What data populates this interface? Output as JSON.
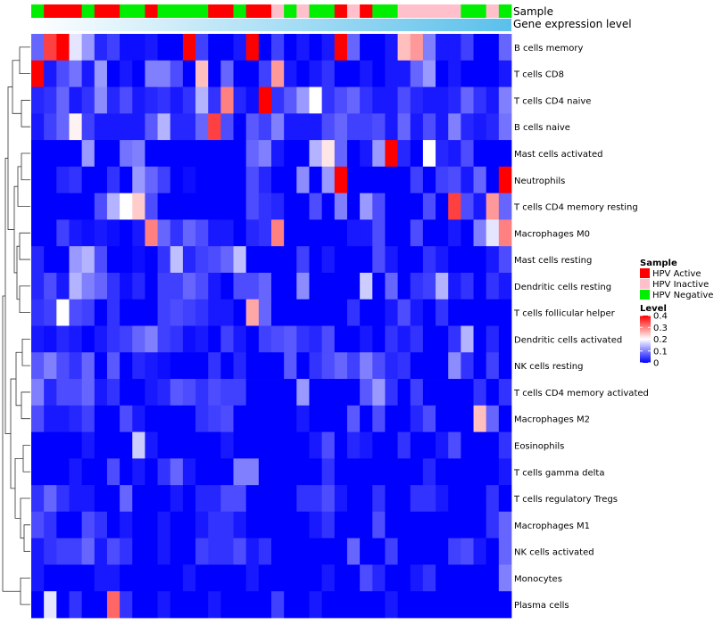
{
  "chart_data": {
    "type": "heatmap",
    "annotation_labels": [
      "Sample",
      "Gene expression level"
    ],
    "sample_groups": [
      "HPV Negative",
      "HPV Active",
      "HPV Active",
      "HPV Active",
      "HPV Negative",
      "HPV Active",
      "HPV Active",
      "HPV Negative",
      "HPV Negative",
      "HPV Active",
      "HPV Negative",
      "HPV Negative",
      "HPV Negative",
      "HPV Negative",
      "HPV Active",
      "HPV Active",
      "HPV Negative",
      "HPV Active",
      "HPV Active",
      "HPV Inactive",
      "HPV Negative",
      "HPV Inactive",
      "HPV Negative",
      "HPV Negative",
      "HPV Active",
      "HPV Inactive",
      "HPV Active",
      "HPV Negative",
      "HPV Negative",
      "HPV Inactive",
      "HPV Inactive",
      "HPV Inactive",
      "HPV Inactive",
      "HPV Inactive",
      "HPV Negative",
      "HPV Negative",
      "HPV Inactive",
      "HPV Negative"
    ],
    "expression_gradient": [
      "#ffffff",
      "#5bc0eb"
    ],
    "rows": [
      "B cells memory",
      "T cells CD8",
      "T cells CD4 naive",
      "B cells naive",
      "Mast cells activated",
      "Neutrophils",
      "T cells CD4 memory resting",
      "Macrophages M0",
      "Mast cells resting",
      "Dendritic cells resting",
      "T cells follicular helper",
      "Dendritic cells activated",
      "NK cells resting",
      "T cells CD4 memory activated",
      "Macrophages M2",
      "Eosinophils",
      "T cells gamma delta",
      "T cells regulatory  Tregs",
      "Macrophages M1",
      "NK cells activated",
      "Monocytes",
      "Plasma cells"
    ],
    "values": [
      [
        0.08,
        0.35,
        0.4,
        0.18,
        0.12,
        0.03,
        0.05,
        0.01,
        0.01,
        0.02,
        0.0,
        0.0,
        0.4,
        0.05,
        0.0,
        0.0,
        0.02,
        0.4,
        0.0,
        0.05,
        0.0,
        0.02,
        0.0,
        0.02,
        0.4,
        0.08,
        0.0,
        0.0,
        0.02,
        0.25,
        0.28,
        0.1,
        0.02,
        0.02,
        0.05,
        0.0,
        0.0,
        0.08
      ],
      [
        0.4,
        0.02,
        0.06,
        0.09,
        0.02,
        0.12,
        0.0,
        0.02,
        0.0,
        0.1,
        0.1,
        0.06,
        0.0,
        0.25,
        0.0,
        0.08,
        0.0,
        0.0,
        0.05,
        0.28,
        0.02,
        0.0,
        0.02,
        0.04,
        0.0,
        0.0,
        0.02,
        0.0,
        0.02,
        0.02,
        0.08,
        0.12,
        0.0,
        0.02,
        0.0,
        0.0,
        0.0,
        0.02
      ],
      [
        0.03,
        0.04,
        0.08,
        0.02,
        0.04,
        0.11,
        0.03,
        0.06,
        0.02,
        0.03,
        0.04,
        0.02,
        0.04,
        0.14,
        0.04,
        0.3,
        0.03,
        0.01,
        0.4,
        0.04,
        0.07,
        0.12,
        0.2,
        0.04,
        0.06,
        0.08,
        0.04,
        0.02,
        0.02,
        0.06,
        0.03,
        0.02,
        0.02,
        0.03,
        0.08,
        0.04,
        0.02,
        0.1
      ],
      [
        0.02,
        0.05,
        0.08,
        0.21,
        0.05,
        0.02,
        0.02,
        0.02,
        0.02,
        0.07,
        0.14,
        0.03,
        0.03,
        0.08,
        0.35,
        0.06,
        0.0,
        0.07,
        0.05,
        0.1,
        0.02,
        0.02,
        0.02,
        0.06,
        0.08,
        0.05,
        0.05,
        0.06,
        0.02,
        0.08,
        0.02,
        0.06,
        0.02,
        0.1,
        0.03,
        0.02,
        0.03,
        0.09
      ],
      [
        0.0,
        0.0,
        0.0,
        0.0,
        0.12,
        0.0,
        0.0,
        0.09,
        0.1,
        0.0,
        0.0,
        0.0,
        0.0,
        0.0,
        0.0,
        0.0,
        0.0,
        0.08,
        0.1,
        0.02,
        0.0,
        0.0,
        0.14,
        0.22,
        0.08,
        0.0,
        0.02,
        0.12,
        0.4,
        0.03,
        0.0,
        0.2,
        0.03,
        0.02,
        0.06,
        0.0,
        0.0,
        0.0
      ],
      [
        0.0,
        0.0,
        0.03,
        0.04,
        0.0,
        0.0,
        0.04,
        0.0,
        0.12,
        0.08,
        0.05,
        0.0,
        0.01,
        0.0,
        0.0,
        0.0,
        0.0,
        0.06,
        0.03,
        0.0,
        0.0,
        0.11,
        0.0,
        0.12,
        0.4,
        0.0,
        0.0,
        0.0,
        0.0,
        0.0,
        0.05,
        0.0,
        0.05,
        0.06,
        0.02,
        0.08,
        0.0,
        0.4
      ],
      [
        0.0,
        0.0,
        0.0,
        0.0,
        0.0,
        0.06,
        0.14,
        0.2,
        0.24,
        0.06,
        0.0,
        0.0,
        0.0,
        0.0,
        0.0,
        0.0,
        0.0,
        0.06,
        0.04,
        0.03,
        0.0,
        0.0,
        0.06,
        0.0,
        0.1,
        0.0,
        0.12,
        0.06,
        0.0,
        0.0,
        0.0,
        0.06,
        0.0,
        0.35,
        0.06,
        0.02,
        0.28,
        0.08
      ],
      [
        0.0,
        0.0,
        0.05,
        0.02,
        0.01,
        0.02,
        0.01,
        0.0,
        0.02,
        0.3,
        0.08,
        0.04,
        0.08,
        0.06,
        0.02,
        0.02,
        0.0,
        0.03,
        0.04,
        0.3,
        0.0,
        0.0,
        0.0,
        0.0,
        0.0,
        0.02,
        0.02,
        0.06,
        0.0,
        0.0,
        0.06,
        0.0,
        0.0,
        0.02,
        0.0,
        0.1,
        0.18,
        0.3
      ],
      [
        0.03,
        0.0,
        0.0,
        0.12,
        0.14,
        0.06,
        0.0,
        0.0,
        0.01,
        0.0,
        0.04,
        0.15,
        0.03,
        0.05,
        0.06,
        0.08,
        0.15,
        0.0,
        0.0,
        0.0,
        0.0,
        0.05,
        0.0,
        0.02,
        0.0,
        0.0,
        0.0,
        0.06,
        0.02,
        0.0,
        0.0,
        0.04,
        0.02,
        0.0,
        0.0,
        0.0,
        0.02,
        0.06
      ],
      [
        0.03,
        0.06,
        0.02,
        0.14,
        0.1,
        0.08,
        0.04,
        0.01,
        0.03,
        0.0,
        0.05,
        0.05,
        0.08,
        0.06,
        0.02,
        0.0,
        0.06,
        0.06,
        0.08,
        0.0,
        0.0,
        0.11,
        0.0,
        0.0,
        0.0,
        0.0,
        0.16,
        0.0,
        0.08,
        0.0,
        0.04,
        0.05,
        0.14,
        0.02,
        0.04,
        0.0,
        0.04,
        0.02
      ],
      [
        0.04,
        0.05,
        0.2,
        0.06,
        0.05,
        0.0,
        0.04,
        0.0,
        0.0,
        0.0,
        0.05,
        0.06,
        0.05,
        0.04,
        0.02,
        0.02,
        0.0,
        0.27,
        0.08,
        0.0,
        0.0,
        0.0,
        0.0,
        0.0,
        0.0,
        0.04,
        0.0,
        0.0,
        0.02,
        0.06,
        0.02,
        0.0,
        0.04,
        0.0,
        0.0,
        0.0,
        0.0,
        0.0
      ],
      [
        0.02,
        0.01,
        0.03,
        0.02,
        0.0,
        0.02,
        0.04,
        0.05,
        0.08,
        0.1,
        0.05,
        0.04,
        0.01,
        0.02,
        0.0,
        0.05,
        0.02,
        0.0,
        0.05,
        0.06,
        0.07,
        0.04,
        0.03,
        0.06,
        0.0,
        0.0,
        0.02,
        0.0,
        0.04,
        0.02,
        0.04,
        0.0,
        0.0,
        0.04,
        0.14,
        0.0,
        0.03,
        0.0
      ],
      [
        0.07,
        0.1,
        0.06,
        0.04,
        0.08,
        0.0,
        0.07,
        0.0,
        0.03,
        0.02,
        0.01,
        0.0,
        0.0,
        0.0,
        0.04,
        0.0,
        0.03,
        0.0,
        0.0,
        0.0,
        0.07,
        0.0,
        0.04,
        0.06,
        0.08,
        0.05,
        0.1,
        0.06,
        0.03,
        0.04,
        0.0,
        0.0,
        0.0,
        0.11,
        0.04,
        0.0,
        0.05,
        0.0
      ],
      [
        0.1,
        0.03,
        0.06,
        0.06,
        0.08,
        0.02,
        0.04,
        0.0,
        0.0,
        0.02,
        0.03,
        0.07,
        0.06,
        0.04,
        0.06,
        0.05,
        0.05,
        0.0,
        0.0,
        0.0,
        0.0,
        0.12,
        0.0,
        0.0,
        0.0,
        0.0,
        0.07,
        0.12,
        0.04,
        0.0,
        0.05,
        0.0,
        0.0,
        0.0,
        0.0,
        0.04,
        0.0,
        0.04
      ],
      [
        0.06,
        0.02,
        0.02,
        0.03,
        0.05,
        0.0,
        0.0,
        0.06,
        0.02,
        0.0,
        0.0,
        0.0,
        0.0,
        0.04,
        0.05,
        0.06,
        0.0,
        0.0,
        0.0,
        0.0,
        0.0,
        0.02,
        0.0,
        0.0,
        0.0,
        0.07,
        0.0,
        0.06,
        0.0,
        0.0,
        0.03,
        0.06,
        0.0,
        0.0,
        0.0,
        0.25,
        0.08,
        0.0
      ],
      [
        0.0,
        0.0,
        0.0,
        0.0,
        0.02,
        0.0,
        0.0,
        0.0,
        0.16,
        0.02,
        0.0,
        0.0,
        0.0,
        0.0,
        0.0,
        0.02,
        0.0,
        0.0,
        0.0,
        0.0,
        0.0,
        0.0,
        0.02,
        0.06,
        0.0,
        0.03,
        0.02,
        0.0,
        0.0,
        0.04,
        0.0,
        0.0,
        0.02,
        0.06,
        0.0,
        0.0,
        0.0,
        0.04
      ],
      [
        0.0,
        0.0,
        0.0,
        0.02,
        0.0,
        0.0,
        0.06,
        0.0,
        0.02,
        0.0,
        0.04,
        0.08,
        0.02,
        0.0,
        0.0,
        0.0,
        0.1,
        0.1,
        0.0,
        0.0,
        0.0,
        0.0,
        0.0,
        0.04,
        0.0,
        0.0,
        0.0,
        0.0,
        0.0,
        0.0,
        0.0,
        0.03,
        0.0,
        0.0,
        0.0,
        0.0,
        0.0,
        0.02
      ],
      [
        0.04,
        0.08,
        0.04,
        0.02,
        0.02,
        0.0,
        0.0,
        0.08,
        0.0,
        0.0,
        0.0,
        0.02,
        0.0,
        0.03,
        0.03,
        0.06,
        0.06,
        0.0,
        0.0,
        0.0,
        0.0,
        0.04,
        0.04,
        0.06,
        0.02,
        0.0,
        0.0,
        0.04,
        0.0,
        0.0,
        0.04,
        0.04,
        0.02,
        0.0,
        0.0,
        0.0,
        0.04,
        0.0
      ],
      [
        0.06,
        0.04,
        0.0,
        0.0,
        0.06,
        0.04,
        0.0,
        0.02,
        0.0,
        0.0,
        0.02,
        0.0,
        0.0,
        0.02,
        0.04,
        0.04,
        0.02,
        0.0,
        0.0,
        0.0,
        0.0,
        0.0,
        0.02,
        0.04,
        0.0,
        0.0,
        0.0,
        0.06,
        0.0,
        0.0,
        0.0,
        0.0,
        0.0,
        0.0,
        0.0,
        0.0,
        0.04,
        0.08
      ],
      [
        0.02,
        0.04,
        0.05,
        0.05,
        0.08,
        0.02,
        0.06,
        0.04,
        0.0,
        0.0,
        0.02,
        0.0,
        0.0,
        0.05,
        0.04,
        0.04,
        0.06,
        0.02,
        0.04,
        0.0,
        0.0,
        0.0,
        0.0,
        0.0,
        0.0,
        0.08,
        0.0,
        0.0,
        0.05,
        0.0,
        0.0,
        0.0,
        0.0,
        0.05,
        0.06,
        0.02,
        0.0,
        0.08
      ],
      [
        0.02,
        0.0,
        0.0,
        0.0,
        0.0,
        0.02,
        0.02,
        0.0,
        0.0,
        0.0,
        0.0,
        0.0,
        0.02,
        0.0,
        0.0,
        0.0,
        0.0,
        0.02,
        0.0,
        0.0,
        0.0,
        0.0,
        0.0,
        0.02,
        0.0,
        0.0,
        0.06,
        0.03,
        0.0,
        0.0,
        0.02,
        0.04,
        0.0,
        0.0,
        0.0,
        0.0,
        0.0,
        0.1
      ],
      [
        0.0,
        0.18,
        0.0,
        0.04,
        0.0,
        0.0,
        0.32,
        0.04,
        0.0,
        0.0,
        0.02,
        0.0,
        0.0,
        0.0,
        0.02,
        0.0,
        0.0,
        0.0,
        0.0,
        0.05,
        0.0,
        0.0,
        0.02,
        0.0,
        0.0,
        0.0,
        0.0,
        0.0,
        0.02,
        0.0,
        0.0,
        0.0,
        0.0,
        0.0,
        0.0,
        0.0,
        0.0,
        0.0
      ]
    ],
    "value_range": [
      0,
      0.4
    ],
    "color_stops": [
      "#0000ff",
      "#ffffff",
      "#ff0000"
    ],
    "legend": {
      "sample_title": "Sample",
      "groups": [
        {
          "name": "HPV Active",
          "color": "#ff0000"
        },
        {
          "name": "HPV Inactive",
          "color": "#ffc0cb"
        },
        {
          "name": "HPV Negative",
          "color": "#00ee00"
        }
      ],
      "level_title": "Level",
      "level_ticks": [
        "0.4",
        "0.3",
        "0.2",
        "0.1",
        "0"
      ]
    }
  }
}
